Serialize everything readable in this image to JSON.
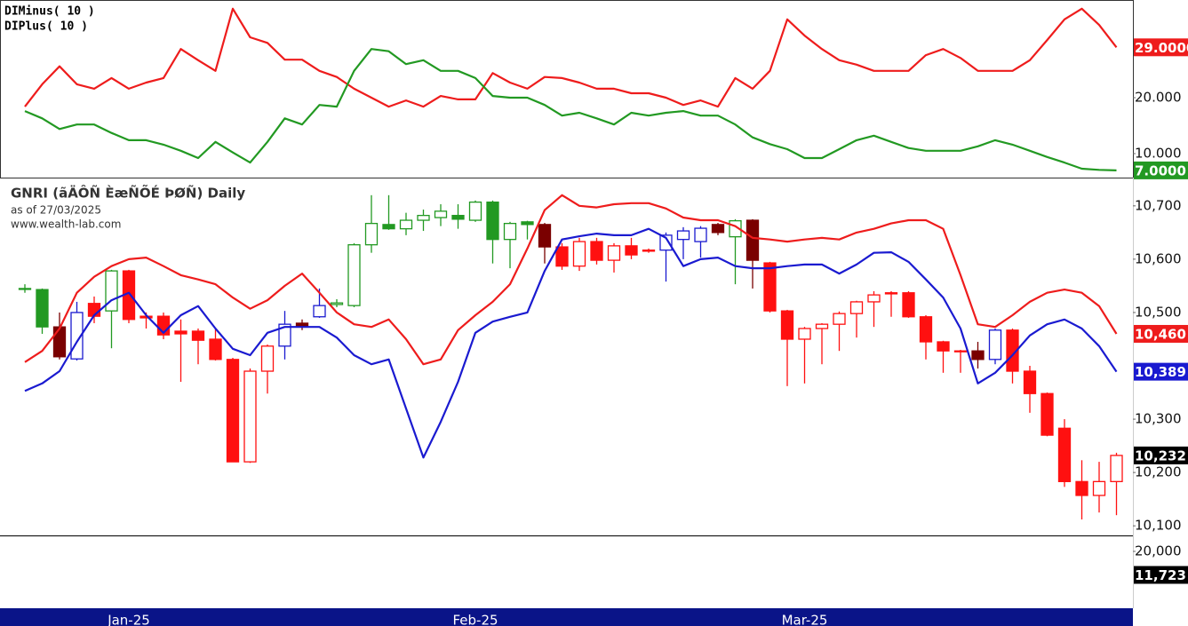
{
  "chart_data": [
    {
      "type": "line",
      "ylim": [
        5.714,
        37.46
      ],
      "yticks": [
        {
          "value": 10,
          "label": "10.000"
        },
        {
          "value": 20,
          "label": "20.000"
        }
      ],
      "series": [
        {
          "name": "DIMinus( 10 )",
          "color": "#ee1c1c",
          "last_label": "29.0000",
          "values": [
            18.4,
            22.4,
            25.6,
            22.4,
            21.6,
            23.5,
            21.6,
            22.7,
            23.5,
            28.7,
            26.7,
            24.8,
            35.9,
            30.8,
            29.8,
            26.8,
            26.8,
            24.8,
            23.7,
            21.6,
            20.0,
            18.4,
            19.5,
            18.4,
            20.3,
            19.7,
            19.7,
            24.4,
            22.7,
            21.6,
            23.7,
            23.5,
            22.7,
            21.6,
            21.6,
            20.8,
            20.8,
            20.0,
            18.7,
            19.5,
            18.4,
            23.5,
            21.6,
            24.8,
            34.0,
            31.1,
            28.7,
            26.7,
            25.9,
            24.8,
            24.8,
            24.8,
            27.6,
            28.7,
            27.1,
            24.8,
            24.8,
            24.8,
            26.7,
            30.3,
            34.0,
            35.9,
            33.0,
            29.0
          ]
        },
        {
          "name": "DIPlus( 10 )",
          "color": "#229922",
          "last_label": "7.0000",
          "values": [
            17.6,
            16.3,
            14.4,
            15.2,
            15.2,
            13.7,
            12.4,
            12.4,
            11.6,
            10.5,
            9.2,
            12.1,
            10.2,
            8.4,
            12.1,
            16.3,
            15.2,
            18.7,
            18.4,
            24.8,
            28.7,
            28.3,
            26.0,
            26.7,
            24.8,
            24.8,
            23.5,
            20.3,
            20.0,
            20.0,
            18.7,
            16.8,
            17.3,
            16.3,
            15.2,
            17.3,
            16.8,
            17.3,
            17.6,
            16.8,
            16.8,
            15.2,
            12.9,
            11.7,
            10.8,
            9.2,
            9.2,
            10.8,
            12.4,
            13.2,
            12.1,
            11.0,
            10.5,
            10.5,
            10.5,
            11.3,
            12.4,
            11.6,
            10.5,
            9.4,
            8.4,
            7.3,
            7.1,
            7.0
          ]
        }
      ]
    },
    {
      "type": "candlestick",
      "title": "GNRI (ãÄÔÑ ÈæÑÕÉ ÞØÑ) Daily",
      "subtitle": "as of 27/03/2025",
      "source": "www.wealth-lab.com",
      "categories": [
        null,
        null,
        null,
        null,
        null,
        null,
        "Jan-25",
        null,
        null,
        null,
        null,
        null,
        null,
        null,
        null,
        null,
        null,
        null,
        null,
        null,
        null,
        null,
        null,
        null,
        null,
        null,
        "Feb-25",
        null,
        null,
        null,
        null,
        null,
        null,
        null,
        null,
        null,
        null,
        null,
        null,
        null,
        null,
        null,
        null,
        null,
        null,
        "Mar-25",
        null,
        null,
        null,
        null,
        null,
        null,
        null,
        null,
        null,
        null,
        null,
        null,
        null,
        null,
        null,
        null,
        null,
        null
      ],
      "ylim": [
        10082,
        10748
      ],
      "yticks": [
        {
          "value": 10100,
          "label": "10,100"
        },
        {
          "value": 10200,
          "label": "10,200"
        },
        {
          "value": 10300,
          "label": "10,300"
        },
        {
          "value": 10500,
          "label": "10,500"
        },
        {
          "value": 10600,
          "label": "10,600"
        },
        {
          "value": 10700,
          "label": "10,700"
        }
      ],
      "palette": {
        "g": "#229922",
        "r": "#ff1010",
        "dr": "#7a0000",
        "b": "#1a1ad0"
      },
      "close_color": "#000000",
      "close_label": "10,232",
      "colors": [
        "g",
        "g",
        "dr",
        "b",
        "r",
        "g",
        "r",
        "r",
        "r",
        "r",
        "r",
        "r",
        "r",
        "r",
        "r",
        "b",
        "dr",
        "b",
        "g",
        "g",
        "g",
        "g",
        "g",
        "g",
        "g",
        "g",
        "g",
        "g",
        "g",
        "g",
        "dr",
        "r",
        "r",
        "r",
        "r",
        "r",
        "r",
        "b",
        "b",
        "b",
        "dr",
        "g",
        "dr",
        "r",
        "r",
        "r",
        "r",
        "r",
        "r",
        "r",
        "r",
        "r",
        "r",
        "r",
        "r",
        "dr",
        "b",
        "r",
        "r",
        "r",
        "r",
        "r",
        "r",
        "r"
      ],
      "open": [
        10545,
        10543,
        10473,
        10413,
        10517,
        10503,
        10578,
        10493,
        10493,
        10465,
        10465,
        10450,
        10412,
        10220,
        10390,
        10437,
        10480,
        10492,
        10515,
        10513,
        10627,
        10665,
        10657,
        10673,
        10678,
        10682,
        10673,
        10707,
        10637,
        10670,
        10665,
        10623,
        10587,
        10633,
        10598,
        10625,
        10617,
        10617,
        10637,
        10633,
        10665,
        10642,
        10673,
        10593,
        10503,
        10450,
        10470,
        10478,
        10498,
        10520,
        10535,
        10537,
        10492,
        10445,
        10428,
        10428,
        10412,
        10467,
        10390,
        10348,
        10283,
        10183,
        10157,
        10183
      ],
      "high": [
        10553,
        10545,
        10500,
        10520,
        10530,
        10580,
        10580,
        10500,
        10500,
        10487,
        10470,
        10470,
        10415,
        10395,
        10440,
        10503,
        10487,
        10545,
        10525,
        10630,
        10720,
        10720,
        10687,
        10693,
        10703,
        10703,
        10710,
        10710,
        10670,
        10672,
        10668,
        10630,
        10640,
        10640,
        10630,
        10640,
        10620,
        10650,
        10660,
        10662,
        10668,
        10675,
        10675,
        10595,
        10505,
        10473,
        10480,
        10502,
        10522,
        10540,
        10540,
        10540,
        10495,
        10447,
        10430,
        10445,
        10470,
        10470,
        10400,
        10350,
        10300,
        10223,
        10220,
        10237
      ],
      "low": [
        10537,
        10460,
        10412,
        10410,
        10480,
        10433,
        10480,
        10470,
        10450,
        10370,
        10403,
        10410,
        10220,
        10218,
        10348,
        10412,
        10467,
        10490,
        10510,
        10510,
        10612,
        10655,
        10645,
        10653,
        10662,
        10657,
        10670,
        10592,
        10583,
        10637,
        10592,
        10580,
        10578,
        10590,
        10575,
        10600,
        10612,
        10558,
        10600,
        10603,
        10645,
        10553,
        10545,
        10500,
        10362,
        10367,
        10403,
        10428,
        10453,
        10473,
        10492,
        10490,
        10412,
        10387,
        10387,
        10395,
        10403,
        10367,
        10312,
        10268,
        10173,
        10112,
        10125,
        10120
      ],
      "close": [
        10545,
        10473,
        10417,
        10500,
        10493,
        10578,
        10487,
        10490,
        10458,
        10460,
        10448,
        10412,
        10220,
        10390,
        10437,
        10478,
        10475,
        10513,
        10518,
        10627,
        10667,
        10657,
        10673,
        10682,
        10690,
        10675,
        10707,
        10637,
        10667,
        10665,
        10623,
        10587,
        10633,
        10598,
        10625,
        10608,
        10615,
        10645,
        10653,
        10658,
        10650,
        10672,
        10598,
        10503,
        10450,
        10470,
        10478,
        10498,
        10520,
        10533,
        10537,
        10492,
        10445,
        10428,
        10427,
        10412,
        10467,
        10390,
        10348,
        10270,
        10183,
        10157,
        10183,
        10232
      ],
      "series": [
        {
          "color": "#ee1c1c",
          "last_label": "10,460",
          "values": [
            10407,
            10428,
            10470,
            10537,
            10567,
            10587,
            10600,
            10603,
            10587,
            10570,
            10562,
            10553,
            10528,
            10507,
            10523,
            10550,
            10573,
            10537,
            10500,
            10478,
            10473,
            10487,
            10450,
            10403,
            10412,
            10467,
            10495,
            10520,
            10553,
            10620,
            10692,
            10720,
            10700,
            10697,
            10703,
            10705,
            10705,
            10695,
            10678,
            10673,
            10673,
            10662,
            10640,
            10637,
            10633,
            10637,
            10640,
            10637,
            10650,
            10657,
            10667,
            10673,
            10673,
            10657,
            10570,
            10478,
            10473,
            10495,
            10520,
            10537,
            10543,
            10537,
            10512,
            10460
          ]
        },
        {
          "color": "#1a1ad0",
          "last_label": "10,389",
          "values": [
            10353,
            10367,
            10390,
            10445,
            10495,
            10523,
            10537,
            10495,
            10462,
            10495,
            10512,
            10470,
            10432,
            10420,
            10462,
            10473,
            10473,
            10473,
            10453,
            10420,
            10403,
            10412,
            10320,
            10228,
            10295,
            10370,
            10462,
            10483,
            10492,
            10500,
            10578,
            10637,
            10643,
            10648,
            10645,
            10645,
            10657,
            10640,
            10587,
            10600,
            10603,
            10587,
            10583,
            10583,
            10587,
            10590,
            10590,
            10573,
            10590,
            10612,
            10613,
            10595,
            10562,
            10528,
            10470,
            10367,
            10387,
            10420,
            10457,
            10478,
            10487,
            10470,
            10437,
            10389
          ]
        }
      ]
    },
    {
      "type": "bar",
      "ylim": [
        0,
        25300
      ],
      "yticks": [
        {
          "value": 20000,
          "label": "20,000"
        }
      ],
      "last_value": 11723,
      "last_label": "11,723",
      "last_color": "#000000"
    }
  ]
}
